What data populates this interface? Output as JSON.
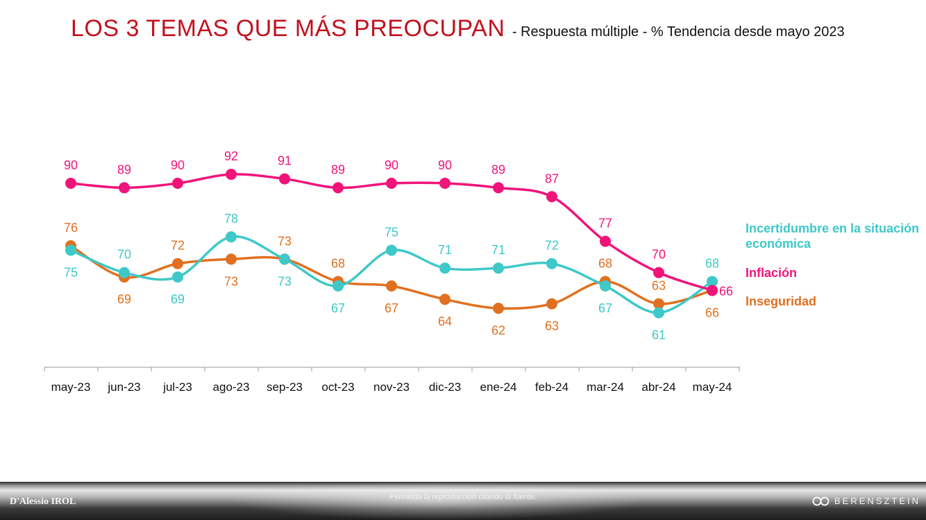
{
  "title": {
    "main": "LOS 3 TEMAS QUE MÁS PREOCUPAN",
    "sub": "- Respuesta múltiple - % Tendencia desde mayo 2023"
  },
  "chart_data": {
    "type": "line",
    "categories": [
      "may-23",
      "jun-23",
      "jul-23",
      "ago-23",
      "sep-23",
      "oct-23",
      "nov-23",
      "dic-23",
      "ene-24",
      "feb-24",
      "mar-24",
      "abr-24",
      "may-24"
    ],
    "series": [
      {
        "name": "Incertidumbre en la situación económica",
        "color": "#3ec8c8",
        "values": [
          75,
          70,
          69,
          78,
          73,
          67,
          75,
          71,
          71,
          72,
          67,
          61,
          68
        ]
      },
      {
        "name": "Inflación",
        "color": "#f0147a",
        "values": [
          90,
          89,
          90,
          92,
          91,
          89,
          90,
          90,
          89,
          87,
          77,
          70,
          66
        ]
      },
      {
        "name": "Inseguridad",
        "color": "#e07020",
        "values": [
          76,
          69,
          72,
          73,
          73,
          68,
          67,
          64,
          62,
          63,
          68,
          63,
          66
        ]
      }
    ],
    "grid": false,
    "legend_position": "right"
  },
  "footer": {
    "note": "Permitida la reproducción citando la fuente.",
    "logo_left": "D'Alessio IROL",
    "logo_right": "BERENSZTEIN"
  }
}
